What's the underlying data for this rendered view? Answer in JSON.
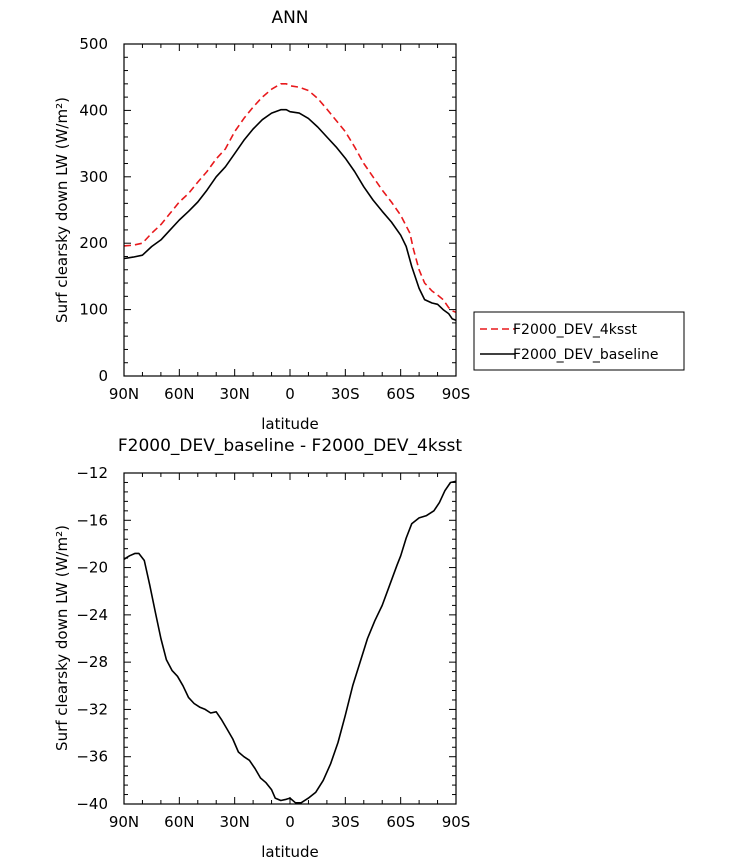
{
  "chart_data": [
    {
      "type": "line",
      "title": "ANN",
      "xlabel": "latitude",
      "ylabel": "Surf clearsky down LW (W/m²)",
      "x_ticks": [
        {
          "value": 90,
          "label": "90N"
        },
        {
          "value": 60,
          "label": "60N"
        },
        {
          "value": 30,
          "label": "30N"
        },
        {
          "value": 0,
          "label": "0"
        },
        {
          "value": -30,
          "label": "30S"
        },
        {
          "value": -60,
          "label": "60S"
        },
        {
          "value": -90,
          "label": "90S"
        }
      ],
      "y_ticks": [
        0,
        100,
        200,
        300,
        400,
        500
      ],
      "xlim": [
        90,
        -90
      ],
      "ylim": [
        0,
        500
      ],
      "legend": {
        "position": "right"
      },
      "series": [
        {
          "name": "F2000_DEV_4ksst",
          "color": "#e8191c",
          "dash": true,
          "points": [
            [
              90,
              196
            ],
            [
              85,
              197
            ],
            [
              80,
              200
            ],
            [
              75,
              215
            ],
            [
              70,
              228
            ],
            [
              65,
              245
            ],
            [
              60,
              262
            ],
            [
              55,
              275
            ],
            [
              50,
              292
            ],
            [
              45,
              308
            ],
            [
              40,
              327
            ],
            [
              35,
              342
            ],
            [
              30,
              368
            ],
            [
              25,
              388
            ],
            [
              20,
              405
            ],
            [
              15,
              420
            ],
            [
              10,
              432
            ],
            [
              5,
              440
            ],
            [
              2,
              440
            ],
            [
              0,
              437
            ],
            [
              -5,
              435
            ],
            [
              -10,
              430
            ],
            [
              -15,
              418
            ],
            [
              -20,
              402
            ],
            [
              -25,
              385
            ],
            [
              -30,
              368
            ],
            [
              -35,
              345
            ],
            [
              -40,
              320
            ],
            [
              -45,
              300
            ],
            [
              -50,
              280
            ],
            [
              -55,
              262
            ],
            [
              -60,
              242
            ],
            [
              -65,
              215
            ],
            [
              -67,
              190
            ],
            [
              -70,
              160
            ],
            [
              -73,
              140
            ],
            [
              -77,
              128
            ],
            [
              -80,
              122
            ],
            [
              -83,
              115
            ],
            [
              -86,
              103
            ],
            [
              -88,
              98
            ],
            [
              -90,
              96
            ]
          ]
        },
        {
          "name": "F2000_DEV_baseline",
          "color": "#000000",
          "dash": false,
          "points": [
            [
              90,
              177
            ],
            [
              85,
              179
            ],
            [
              80,
              182
            ],
            [
              75,
              195
            ],
            [
              70,
              205
            ],
            [
              65,
              220
            ],
            [
              60,
              235
            ],
            [
              55,
              248
            ],
            [
              50,
              262
            ],
            [
              45,
              280
            ],
            [
              40,
              300
            ],
            [
              35,
              315
            ],
            [
              30,
              335
            ],
            [
              25,
              355
            ],
            [
              20,
              372
            ],
            [
              15,
              386
            ],
            [
              10,
              396
            ],
            [
              5,
              401
            ],
            [
              2,
              401
            ],
            [
              0,
              398
            ],
            [
              -5,
              396
            ],
            [
              -10,
              388
            ],
            [
              -15,
              375
            ],
            [
              -20,
              360
            ],
            [
              -25,
              345
            ],
            [
              -30,
              328
            ],
            [
              -35,
              308
            ],
            [
              -40,
              285
            ],
            [
              -45,
              265
            ],
            [
              -50,
              248
            ],
            [
              -55,
              232
            ],
            [
              -60,
              212
            ],
            [
              -63,
              195
            ],
            [
              -66,
              165
            ],
            [
              -70,
              132
            ],
            [
              -73,
              115
            ],
            [
              -77,
              110
            ],
            [
              -80,
              108
            ],
            [
              -83,
              100
            ],
            [
              -86,
              94
            ],
            [
              -88,
              86
            ],
            [
              -90,
              84
            ]
          ]
        }
      ]
    },
    {
      "type": "line",
      "title": "F2000_DEV_baseline - F2000_DEV_4ksst",
      "xlabel": "latitude",
      "ylabel": "Surf clearsky down LW (W/m²)",
      "x_ticks": [
        {
          "value": 90,
          "label": "90N"
        },
        {
          "value": 60,
          "label": "60N"
        },
        {
          "value": 30,
          "label": "30N"
        },
        {
          "value": 0,
          "label": "0"
        },
        {
          "value": -30,
          "label": "30S"
        },
        {
          "value": -60,
          "label": "60S"
        },
        {
          "value": -90,
          "label": "90S"
        }
      ],
      "y_ticks": [
        -12,
        -16,
        -20,
        -24,
        -28,
        -32,
        -36,
        -40
      ],
      "xlim": [
        90,
        -90
      ],
      "ylim": [
        -40,
        -12
      ],
      "series": [
        {
          "color": "#000000",
          "dash": false,
          "points": [
            [
              90,
              -19.3
            ],
            [
              87,
              -19.0
            ],
            [
              84,
              -18.8
            ],
            [
              82,
              -18.8
            ],
            [
              79,
              -19.4
            ],
            [
              76,
              -21.5
            ],
            [
              73,
              -23.8
            ],
            [
              70,
              -26.0
            ],
            [
              67,
              -27.8
            ],
            [
              64,
              -28.7
            ],
            [
              61,
              -29.2
            ],
            [
              58,
              -30.0
            ],
            [
              55,
              -31.0
            ],
            [
              52,
              -31.5
            ],
            [
              49,
              -31.8
            ],
            [
              46,
              -32.0
            ],
            [
              43,
              -32.3
            ],
            [
              40,
              -32.2
            ],
            [
              37,
              -32.9
            ],
            [
              34,
              -33.7
            ],
            [
              31,
              -34.5
            ],
            [
              28,
              -35.6
            ],
            [
              25,
              -36.0
            ],
            [
              22,
              -36.3
            ],
            [
              19,
              -37.0
            ],
            [
              16,
              -37.8
            ],
            [
              13,
              -38.2
            ],
            [
              10,
              -38.8
            ],
            [
              8,
              -39.5
            ],
            [
              5,
              -39.7
            ],
            [
              2,
              -39.6
            ],
            [
              0,
              -39.5
            ],
            [
              -3,
              -39.9
            ],
            [
              -6,
              -39.9
            ],
            [
              -10,
              -39.5
            ],
            [
              -14,
              -39.0
            ],
            [
              -18,
              -38.0
            ],
            [
              -22,
              -36.6
            ],
            [
              -26,
              -34.8
            ],
            [
              -30,
              -32.5
            ],
            [
              -34,
              -30.0
            ],
            [
              -38,
              -28.0
            ],
            [
              -42,
              -26.0
            ],
            [
              -46,
              -24.5
            ],
            [
              -50,
              -23.2
            ],
            [
              -54,
              -21.5
            ],
            [
              -58,
              -19.8
            ],
            [
              -60,
              -19.0
            ],
            [
              -63,
              -17.5
            ],
            [
              -66,
              -16.3
            ],
            [
              -70,
              -15.8
            ],
            [
              -74,
              -15.6
            ],
            [
              -78,
              -15.2
            ],
            [
              -81,
              -14.5
            ],
            [
              -84,
              -13.5
            ],
            [
              -87,
              -12.8
            ],
            [
              -90,
              -12.7
            ]
          ]
        }
      ]
    }
  ]
}
